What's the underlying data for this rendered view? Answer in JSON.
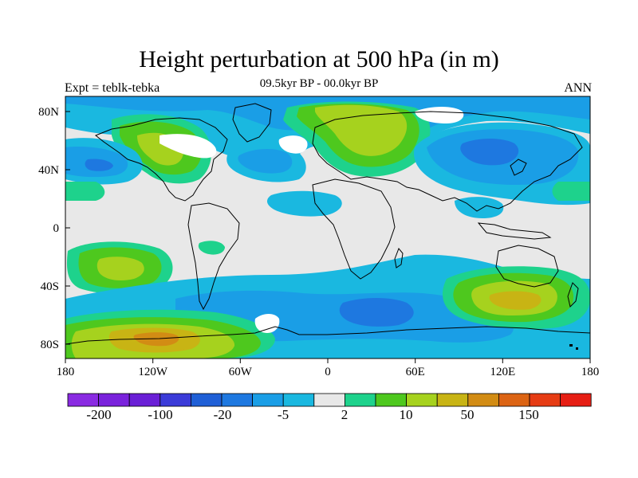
{
  "title": "Height perturbation at 500 hPa (in m)",
  "subtitle_left": "Expt = teblk-tebka",
  "subtitle_center": "09.5kyr BP - 00.0kyr BP",
  "subtitle_right": "ANN",
  "lat_labels": [
    "80N",
    "40N",
    "0",
    "40S",
    "80S"
  ],
  "lon_labels": [
    "180",
    "120W",
    "60W",
    "0",
    "60E",
    "120E",
    "180"
  ],
  "colorbar": {
    "colors": [
      "#8a2be2",
      "#7a22dc",
      "#6a1fd6",
      "#3b3bd8",
      "#1f5fd6",
      "#1e78e0",
      "#1a9ee6",
      "#1ab8e0",
      "#e8e8e8",
      "#1ed28c",
      "#4ec81e",
      "#a6d21e",
      "#c8b414",
      "#d28c14",
      "#dc6414",
      "#e63c14",
      "#e61e14"
    ],
    "labels": [
      "-200",
      "-100",
      "-20",
      "-5",
      "2",
      "10",
      "50",
      "150"
    ]
  },
  "map_colors": {
    "background": "#e8e8e8",
    "cyan": "#1ab8e0",
    "light_blue": "#1a9ee6",
    "blue": "#1e78e0",
    "dark_blue": "#1f5fd6",
    "teal": "#1ed28c",
    "green": "#4ec81e",
    "yellow_green": "#a6d21e",
    "olive": "#c8b414",
    "orange": "#d28c14",
    "white": "#ffffff",
    "coast": "#000000"
  }
}
